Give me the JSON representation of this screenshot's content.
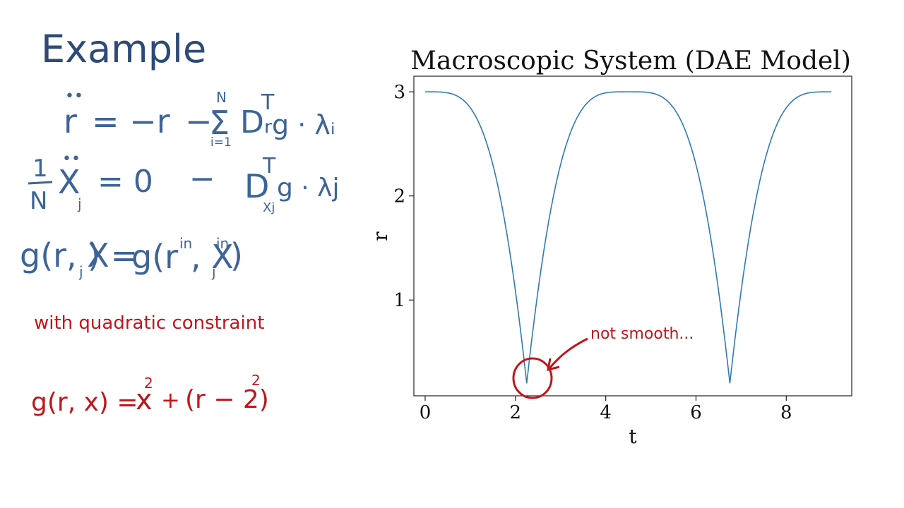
{
  "slide": {
    "heading": "Example",
    "eq1": {
      "lhs": "r",
      "rhs_main": "= −r",
      "minus": "−",
      "sum_sym": "Σ",
      "sum_top": "N",
      "sum_bottom": "i=1",
      "term": "Dᵣ",
      "sup": "T",
      "tail": "g · λᵢ"
    },
    "eq2": {
      "frac_num": "1",
      "frac_den": "N",
      "lhs": "X",
      "lhs_sub": "j",
      "rhs": "=  0",
      "minus": "−",
      "term": "D",
      "term_sub": "Xj",
      "sup": "T",
      "tail": "g · λj"
    },
    "eq3": {
      "left": "g(r, X",
      "left_sub": "j",
      "left_close": ") =",
      "right": "g(r",
      "right_sup1": "in",
      "right_mid": ", X",
      "right_sub": "j",
      "right_sup2": "in",
      "right_close": ")"
    },
    "note": "with quadratic constraint",
    "eq4": {
      "left": "g(r, x) =",
      "x": "x",
      "exp1": "2",
      "plus": "+",
      "paren": "(r − 2)",
      "exp2": "2"
    },
    "annotation": "not smooth..."
  },
  "chart_data": {
    "type": "line",
    "title": "Macroscopic System (DAE Model)",
    "xlabel": "t",
    "ylabel": "r",
    "xlim": [
      -0.25,
      9.45
    ],
    "ylim": [
      0.08,
      3.15
    ],
    "xticks": [
      0,
      2,
      4,
      6,
      8
    ],
    "yticks": [
      1,
      2,
      3
    ],
    "grid": false,
    "line_color": "#2f7ab8",
    "series": [
      {
        "x": [
          0,
          0.5,
          1.0,
          1.5,
          2.0,
          2.25,
          2.5,
          3.0,
          3.5,
          4.0,
          4.5,
          5.0,
          5.5,
          6.0,
          6.5,
          6.75,
          7.0,
          7.5,
          8.0,
          8.5,
          9.0
        ],
        "y": [
          3.0,
          2.94,
          2.62,
          1.93,
          0.93,
          0.2,
          0.93,
          1.93,
          2.62,
          2.94,
          3.0,
          2.94,
          2.62,
          1.93,
          0.93,
          0.2,
          0.93,
          1.93,
          2.62,
          2.94,
          3.0
        ]
      }
    ]
  }
}
